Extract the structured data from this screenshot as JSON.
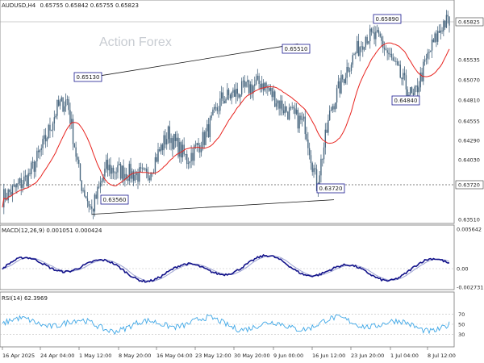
{
  "header": {
    "symbol": "AUDUSD,H4",
    "ohlc": "0.65755 0.65842 0.65755 0.65823"
  },
  "watermark": "Action Forex",
  "colors": {
    "candle": "#4a6880",
    "ma": "#e8241f",
    "trendline": "#1a1a1a",
    "macd_main": "#12128a",
    "macd_signal": "#9aa0d0",
    "rsi_line": "#3fa7e6",
    "label_border": "#1a1a8f"
  },
  "chart_data": {
    "type": "candlestick",
    "price_panel": {
      "ylim": [
        0.635,
        0.6595
      ],
      "yticks": [
        "0.65825",
        "0.65535",
        "0.65070",
        "0.64810",
        "0.64555",
        "0.64290",
        "0.64030",
        "0.63720",
        "0.63510"
      ],
      "current_price": "0.65823",
      "support_level": "0.63720",
      "point_labels": [
        "0.65890",
        "0.65510",
        "0.65130",
        "0.64840",
        "0.63560",
        "0.63720"
      ],
      "close_path": [
        {
          "t": 0,
          "close": 0.6375
        },
        {
          "t": 8,
          "close": 0.6385
        },
        {
          "t": 18,
          "close": 0.64
        },
        {
          "t": 28,
          "close": 0.6435
        },
        {
          "t": 38,
          "close": 0.648
        },
        {
          "t": 45,
          "close": 0.649
        },
        {
          "t": 54,
          "close": 0.6395
        },
        {
          "t": 62,
          "close": 0.636
        },
        {
          "t": 72,
          "close": 0.641
        },
        {
          "t": 85,
          "close": 0.6405
        },
        {
          "t": 100,
          "close": 0.64
        },
        {
          "t": 115,
          "close": 0.645
        },
        {
          "t": 128,
          "close": 0.642
        },
        {
          "t": 140,
          "close": 0.6445
        },
        {
          "t": 152,
          "close": 0.649
        },
        {
          "t": 165,
          "close": 0.65
        },
        {
          "t": 180,
          "close": 0.651
        },
        {
          "t": 195,
          "close": 0.648
        },
        {
          "t": 210,
          "close": 0.646
        },
        {
          "t": 218,
          "close": 0.639
        },
        {
          "t": 228,
          "close": 0.648
        },
        {
          "t": 240,
          "close": 0.653
        },
        {
          "t": 252,
          "close": 0.6565
        },
        {
          "t": 262,
          "close": 0.656
        },
        {
          "t": 275,
          "close": 0.652
        },
        {
          "t": 285,
          "close": 0.649
        },
        {
          "t": 296,
          "close": 0.6545
        },
        {
          "t": 306,
          "close": 0.658
        }
      ],
      "trendlines": [
        {
          "x1": 50,
          "y1": 0.6513,
          "x2": 205,
          "y2": 0.6555
        },
        {
          "x1": 62,
          "y1": 0.6356,
          "x2": 230,
          "y2": 0.6373
        }
      ]
    },
    "macd": {
      "label": "MACD(12,26,9) 0.001051 0.000424",
      "yticks": [
        "0.005642",
        "0.00",
        "-0.002731"
      ]
    },
    "rsi": {
      "label": "RSI(14) 62.3969",
      "yticks": [
        "70",
        "50",
        "30"
      ],
      "levels": [
        70,
        50,
        30
      ]
    },
    "x_ticks": [
      "16 Apr 2025",
      "24 Apr 04:00",
      "1 May 12:00",
      "8 May 20:00",
      "16 May 04:00",
      "23 May 12:00",
      "30 May 20:00",
      "9 Jun 00:00",
      "16 Jun 12:00",
      "23 Jun 20:00",
      "1 Jul 04:00",
      "8 Jul 12:00"
    ]
  }
}
